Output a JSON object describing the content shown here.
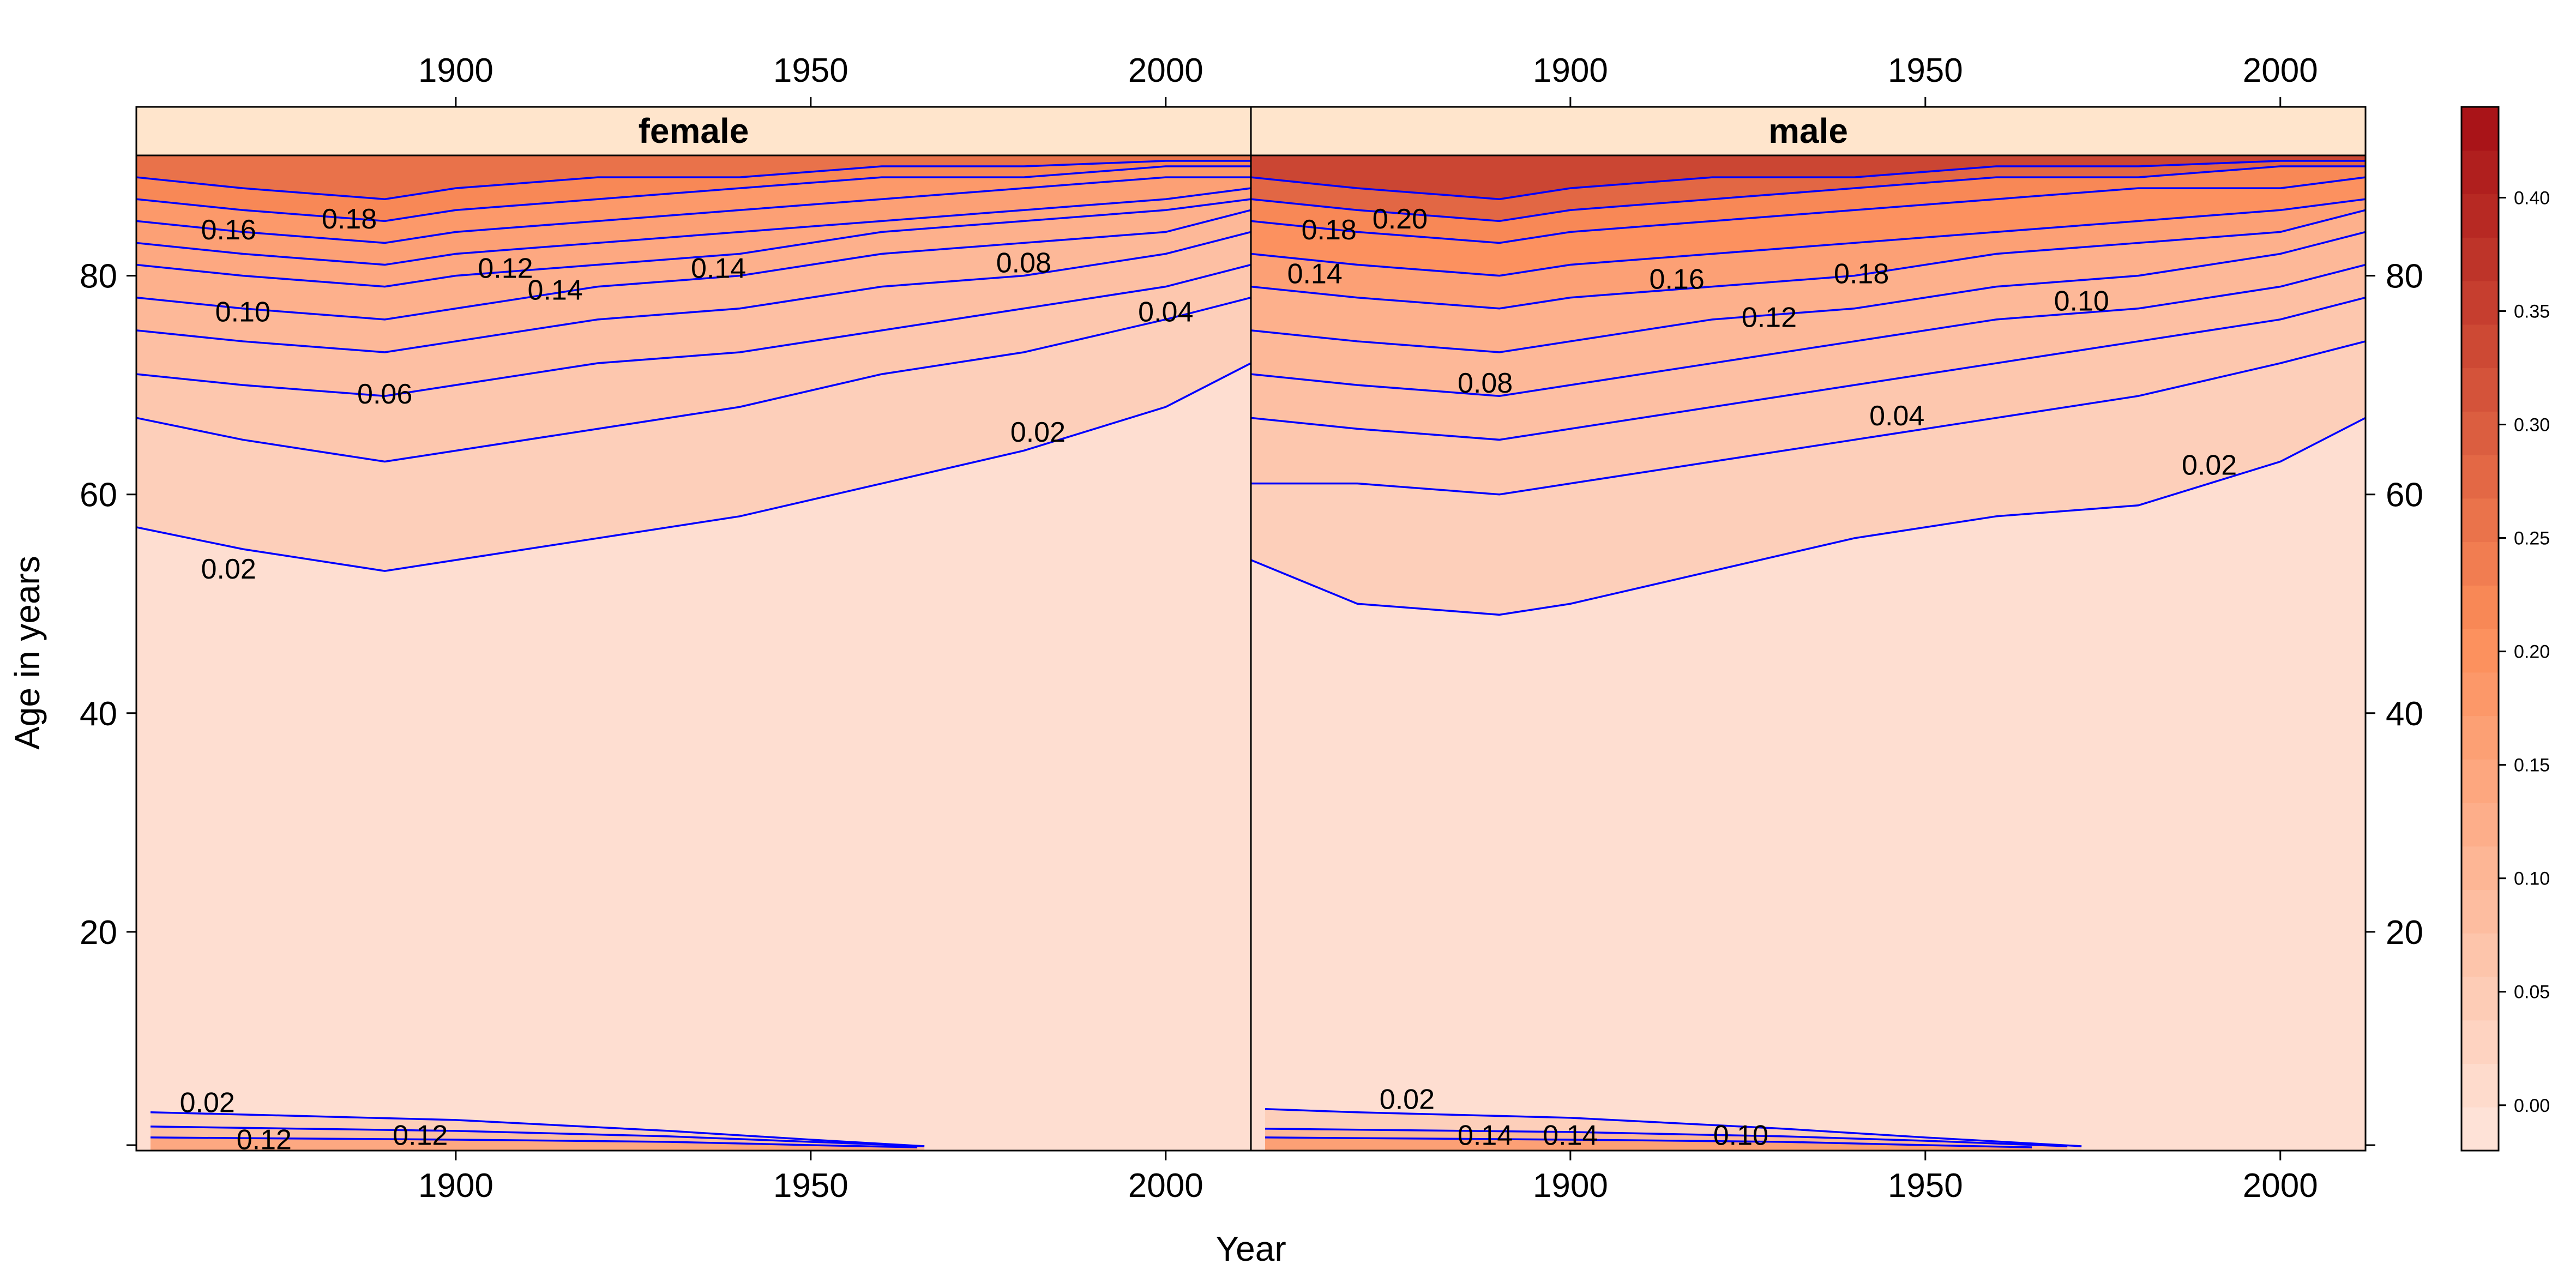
{
  "chart_data": {
    "type": "contour",
    "xlabel": "Year",
    "ylabel": "Age in years",
    "xlim": [
      1855,
      2012
    ],
    "ylim": [
      0,
      91
    ],
    "x_ticks": [
      1900,
      1950,
      2000
    ],
    "y_ticks": [
      20,
      40,
      60,
      80
    ],
    "colorbar": {
      "ticks": [
        "0.00",
        "0.05",
        "0.10",
        "0.15",
        "0.20",
        "0.25",
        "0.30",
        "0.35",
        "0.40"
      ],
      "range": [
        -0.02,
        0.44
      ],
      "levels": 24,
      "color_low": "#fee6dc",
      "color_high": "#a50f15"
    },
    "contour_color": "#0000ff",
    "panels": [
      {
        "name": "female",
        "contours": [
          {
            "level": 0.02,
            "x": [
              1855,
              1870,
              1890,
              1900,
              1920,
              1940,
              1960,
              1980,
              2000,
              2012
            ],
            "y": [
              57,
              55,
              53,
              54,
              56,
              58,
              61,
              64,
              68,
              72
            ]
          },
          {
            "level": 0.04,
            "x": [
              1855,
              1870,
              1890,
              1900,
              1920,
              1940,
              1960,
              1980,
              2000,
              2012
            ],
            "y": [
              67,
              65,
              63,
              64,
              66,
              68,
              71,
              73,
              76,
              78
            ]
          },
          {
            "level": 0.06,
            "x": [
              1855,
              1870,
              1890,
              1900,
              1920,
              1940,
              1960,
              1980,
              2000,
              2012
            ],
            "y": [
              71,
              70,
              69,
              70,
              72,
              73,
              75,
              77,
              79,
              81
            ]
          },
          {
            "level": 0.08,
            "x": [
              1855,
              1870,
              1890,
              1900,
              1920,
              1940,
              1960,
              1980,
              2000,
              2012
            ],
            "y": [
              75,
              74,
              73,
              74,
              76,
              77,
              79,
              80,
              82,
              84
            ]
          },
          {
            "level": 0.1,
            "x": [
              1855,
              1870,
              1890,
              1900,
              1920,
              1940,
              1960,
              1980,
              2000,
              2012
            ],
            "y": [
              78,
              77,
              76,
              77,
              79,
              80,
              82,
              83,
              84,
              86
            ]
          },
          {
            "level": 0.12,
            "x": [
              1855,
              1870,
              1890,
              1900,
              1920,
              1940,
              1960,
              1980,
              2000,
              2012
            ],
            "y": [
              81,
              80,
              79,
              80,
              81,
              82,
              84,
              85,
              86,
              87
            ]
          },
          {
            "level": 0.14,
            "x": [
              1855,
              1870,
              1890,
              1900,
              1920,
              1940,
              1960,
              1980,
              2000,
              2012
            ],
            "y": [
              83,
              82,
              81,
              82,
              83,
              84,
              85,
              86,
              87,
              88
            ]
          },
          {
            "level": 0.16,
            "x": [
              1855,
              1870,
              1890,
              1900,
              1920,
              1940,
              1960,
              1980,
              2000,
              2012
            ],
            "y": [
              85,
              84,
              83,
              84,
              85,
              86,
              87,
              88,
              89,
              89
            ]
          },
          {
            "level": 0.2,
            "x": [
              1855,
              1870,
              1890,
              1900,
              1920,
              1940,
              1960,
              1980,
              2000,
              2012
            ],
            "y": [
              87,
              86,
              85,
              86,
              87,
              88,
              89,
              89,
              90,
              90
            ]
          },
          {
            "level": 0.24,
            "x": [
              1855,
              1870,
              1890,
              1900,
              1920,
              1940,
              1960,
              1980,
              2000,
              2012
            ],
            "y": [
              89,
              88,
              87,
              88,
              89,
              89,
              90,
              90,
              90.5,
              90.5
            ]
          },
          {
            "level": 0.12,
            "x": [
              1857,
              1900,
              1930,
              1950,
              1965
            ],
            "y": [
              1.2,
              1.0,
              0.8,
              0.5,
              0.3
            ]
          },
          {
            "level": 0.06,
            "x": [
              1857,
              1900,
              1930,
              1950,
              1966
            ],
            "y": [
              2.2,
              1.8,
              1.3,
              0.8,
              0.4
            ]
          },
          {
            "level": 0.02,
            "x": [
              1857,
              1870,
              1900,
              1930,
              1950,
              1966
            ],
            "y": [
              3.5,
              3.3,
              2.8,
              1.8,
              1.0,
              0.4
            ]
          }
        ],
        "labels": [
          {
            "text": "0.02",
            "x": 1868,
            "y": 53
          },
          {
            "text": "0.02",
            "x": 1982,
            "y": 65.5
          },
          {
            "text": "0.04",
            "x": 2000,
            "y": 76.5
          },
          {
            "text": "0.06",
            "x": 1890,
            "y": 69
          },
          {
            "text": "0.08",
            "x": 1980,
            "y": 81
          },
          {
            "text": "0.10",
            "x": 1870,
            "y": 76.5
          },
          {
            "text": "0.12",
            "x": 1907,
            "y": 80.5
          },
          {
            "text": "0.14",
            "x": 1914,
            "y": 78.5
          },
          {
            "text": "0.14",
            "x": 1937,
            "y": 80.5
          },
          {
            "text": "0.16",
            "x": 1868,
            "y": 84
          },
          {
            "text": "0.18",
            "x": 1885,
            "y": 85
          },
          {
            "text": "0.12",
            "x": 1895,
            "y": 1.2
          },
          {
            "text": "0.12",
            "x": 1873,
            "y": 0.8
          },
          {
            "text": "0.02",
            "x": 1865,
            "y": 4.2
          }
        ]
      },
      {
        "name": "male",
        "contours": [
          {
            "level": 0.02,
            "x": [
              1855,
              1870,
              1890,
              1900,
              1920,
              1940,
              1960,
              1980,
              2000,
              2012
            ],
            "y": [
              54,
              50,
              49,
              50,
              53,
              56,
              58,
              59,
              63,
              67
            ]
          },
          {
            "level": 0.04,
            "x": [
              1855,
              1870,
              1890,
              1900,
              1920,
              1940,
              1960,
              1980,
              2000,
              2012
            ],
            "y": [
              61,
              61,
              60,
              61,
              63,
              65,
              67,
              69,
              72,
              74
            ]
          },
          {
            "level": 0.06,
            "x": [
              1855,
              1870,
              1890,
              1900,
              1920,
              1940,
              1960,
              1980,
              2000,
              2012
            ],
            "y": [
              67,
              66,
              65,
              66,
              68,
              70,
              72,
              74,
              76,
              78
            ]
          },
          {
            "level": 0.08,
            "x": [
              1855,
              1870,
              1890,
              1900,
              1920,
              1940,
              1960,
              1980,
              2000,
              2012
            ],
            "y": [
              71,
              70,
              69,
              70,
              72,
              74,
              76,
              77,
              79,
              81
            ]
          },
          {
            "level": 0.1,
            "x": [
              1855,
              1870,
              1890,
              1900,
              1920,
              1940,
              1960,
              1980,
              2000,
              2012
            ],
            "y": [
              75,
              74,
              73,
              74,
              76,
              77,
              79,
              80,
              82,
              84
            ]
          },
          {
            "level": 0.14,
            "x": [
              1855,
              1870,
              1890,
              1900,
              1920,
              1940,
              1960,
              1980,
              2000,
              2012
            ],
            "y": [
              79,
              78,
              77,
              78,
              79,
              80,
              82,
              83,
              84,
              86
            ]
          },
          {
            "level": 0.18,
            "x": [
              1855,
              1870,
              1890,
              1900,
              1920,
              1940,
              1960,
              1980,
              2000,
              2012
            ],
            "y": [
              82,
              81,
              80,
              81,
              82,
              83,
              84,
              85,
              86,
              87
            ]
          },
          {
            "level": 0.2,
            "x": [
              1855,
              1870,
              1890,
              1900,
              1920,
              1940,
              1960,
              1980,
              2000,
              2012
            ],
            "y": [
              85,
              84,
              83,
              84,
              85,
              86,
              87,
              88,
              88,
              89
            ]
          },
          {
            "level": 0.26,
            "x": [
              1855,
              1870,
              1890,
              1900,
              1920,
              1940,
              1960,
              1980,
              2000,
              2012
            ],
            "y": [
              87,
              86,
              85,
              86,
              87,
              88,
              89,
              89,
              90,
              90
            ]
          },
          {
            "level": 0.32,
            "x": [
              1855,
              1870,
              1890,
              1900,
              1920,
              1940,
              1960,
              1980,
              2000,
              2012
            ],
            "y": [
              89,
              88,
              87,
              88,
              89,
              89,
              90,
              90,
              90.5,
              90.5
            ]
          },
          {
            "level": 0.14,
            "x": [
              1857,
              1900,
              1930,
              1950,
              1965
            ],
            "y": [
              1.2,
              1.0,
              0.8,
              0.5,
              0.3
            ]
          },
          {
            "level": 0.08,
            "x": [
              1857,
              1900,
              1930,
              1950,
              1970
            ],
            "y": [
              2.0,
              1.7,
              1.3,
              0.9,
              0.4
            ]
          },
          {
            "level": 0.02,
            "x": [
              1857,
              1870,
              1900,
              1930,
              1950,
              1972
            ],
            "y": [
              3.8,
              3.5,
              3.0,
              2.0,
              1.2,
              0.4
            ]
          }
        ],
        "labels": [
          {
            "text": "0.02",
            "x": 1990,
            "y": 62.5
          },
          {
            "text": "0.04",
            "x": 1946,
            "y": 67
          },
          {
            "text": "0.08",
            "x": 1888,
            "y": 70
          },
          {
            "text": "0.10",
            "x": 1972,
            "y": 77.5
          },
          {
            "text": "0.12",
            "x": 1928,
            "y": 76
          },
          {
            "text": "0.14",
            "x": 1864,
            "y": 80
          },
          {
            "text": "0.16",
            "x": 1915,
            "y": 79.5
          },
          {
            "text": "0.18",
            "x": 1866,
            "y": 84
          },
          {
            "text": "0.18",
            "x": 1941,
            "y": 80
          },
          {
            "text": "0.20",
            "x": 1876,
            "y": 85
          },
          {
            "text": "0.14",
            "x": 1888,
            "y": 1.2
          },
          {
            "text": "0.14",
            "x": 1900,
            "y": 1.2
          },
          {
            "text": "0.10",
            "x": 1924,
            "y": 1.2
          },
          {
            "text": "0.02",
            "x": 1877,
            "y": 4.5
          }
        ]
      }
    ]
  }
}
